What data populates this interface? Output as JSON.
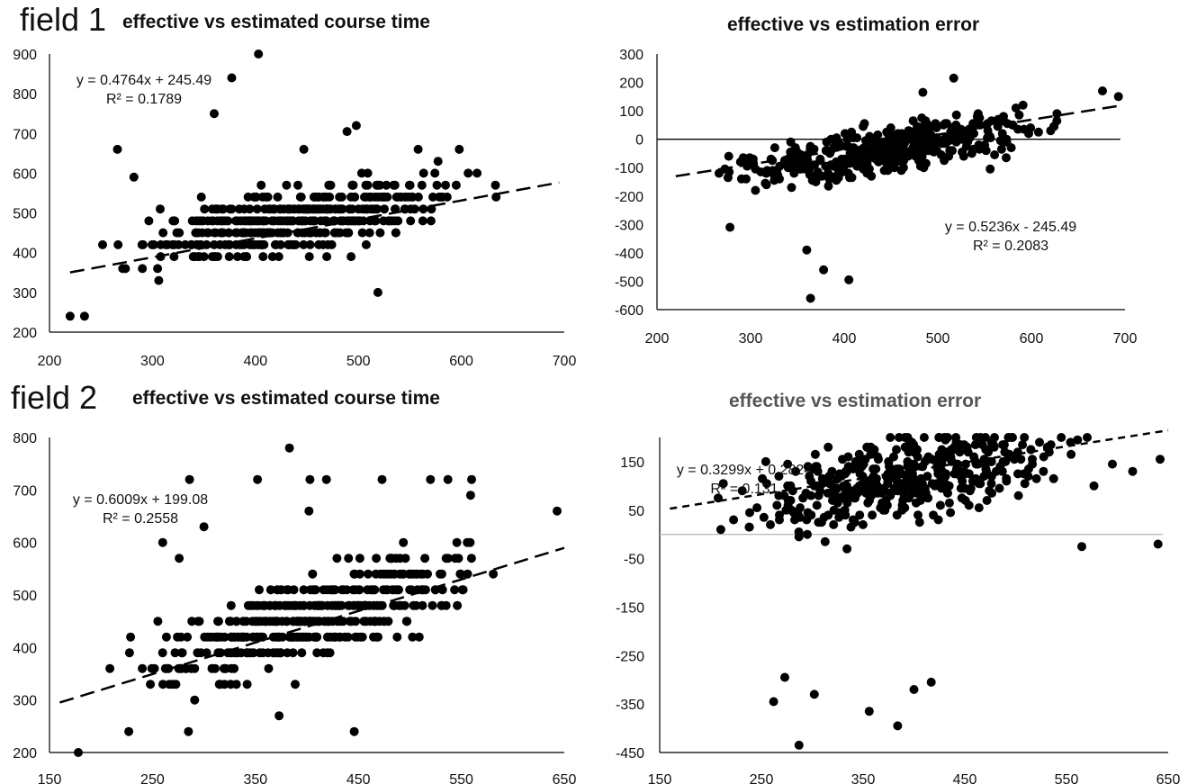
{
  "field_labels": [
    "field 1",
    "field 2"
  ],
  "colors": {
    "points": "#000000",
    "axes": "#000000",
    "zero_line_field2": "#bbbbbb",
    "title_field2_right": "#555555"
  },
  "chart_data": [
    {
      "id": "f1-time",
      "type": "scatter",
      "title": "effective vs estimated course time",
      "xlim": [
        200,
        700
      ],
      "ylim": [
        200,
        900
      ],
      "xticks": [
        200,
        300,
        400,
        500,
        600,
        700
      ],
      "yticks": [
        200,
        300,
        400,
        500,
        600,
        700,
        800,
        900
      ],
      "trendline": {
        "slope": 0.4764,
        "intercept": 245.49,
        "x_range": [
          220,
          695
        ]
      },
      "equation": "y = 0.4764x + 245.49",
      "r2": "R² = 0.1789",
      "zero_line": false,
      "n_points": 420,
      "noise": [
        -110,
        160
      ],
      "x_range": [
        218,
        693
      ],
      "outliers": [
        [
          403,
          900
        ],
        [
          377,
          840
        ],
        [
          360,
          750
        ],
        [
          498,
          720
        ],
        [
          489,
          705
        ],
        [
          266,
          660
        ],
        [
          447,
          660
        ],
        [
          558,
          660
        ],
        [
          598,
          660
        ],
        [
          282,
          590
        ],
        [
          519,
          300
        ],
        [
          234,
          240
        ],
        [
          220,
          240
        ]
      ]
    },
    {
      "id": "f1-error",
      "type": "scatter",
      "title": "effective vs estimation error",
      "xlim": [
        200,
        700
      ],
      "ylim": [
        -600,
        300
      ],
      "xticks": [
        200,
        300,
        400,
        500,
        600,
        700
      ],
      "yticks": [
        -600,
        -500,
        -400,
        -300,
        -200,
        -100,
        0,
        100,
        200,
        300
      ],
      "trendline": {
        "slope": 0.5236,
        "intercept": -245.49,
        "x_range": [
          220,
          695
        ]
      },
      "equation": "y = 0.5236x - 245.49",
      "r2": "R² = 0.2083",
      "zero_line": true,
      "zero_line_range": [
        200,
        695
      ],
      "n_points": 420,
      "noise": [
        -160,
        110
      ],
      "x_range": [
        218,
        693
      ],
      "outliers": [
        [
          378,
          -460
        ],
        [
          405,
          -495
        ],
        [
          364,
          -560
        ],
        [
          360,
          -390
        ],
        [
          278,
          -310
        ],
        [
          517,
          215
        ],
        [
          484,
          165
        ],
        [
          676,
          170
        ],
        [
          693,
          150
        ],
        [
          556,
          -105
        ]
      ]
    },
    {
      "id": "f2-time",
      "type": "scatter",
      "title": "effective vs estimated course time",
      "xlim": [
        150,
        650
      ],
      "ylim": [
        200,
        800
      ],
      "xticks": [
        150,
        250,
        350,
        450,
        550,
        650
      ],
      "yticks": [
        200,
        300,
        400,
        500,
        600,
        700,
        800
      ],
      "trendline": {
        "slope": 0.6009,
        "intercept": 199.08,
        "x_range": [
          160,
          650
        ]
      },
      "equation": "y = 0.6009x + 199.08",
      "r2": "R² = 0.2558",
      "zero_line": false,
      "n_points": 420,
      "noise": [
        -120,
        150
      ],
      "x_range": [
        175,
        642
      ],
      "outliers": [
        [
          383,
          780
        ],
        [
          286,
          720
        ],
        [
          352,
          720
        ],
        [
          403,
          720
        ],
        [
          419,
          720
        ],
        [
          473,
          720
        ],
        [
          520,
          720
        ],
        [
          537,
          720
        ],
        [
          560,
          720
        ],
        [
          559,
          690
        ],
        [
          643,
          660
        ],
        [
          402,
          660
        ],
        [
          300,
          630
        ],
        [
          260,
          600
        ],
        [
          276,
          570
        ],
        [
          178,
          200
        ],
        [
          373,
          270
        ],
        [
          446,
          240
        ],
        [
          285,
          240
        ],
        [
          227,
          240
        ]
      ]
    },
    {
      "id": "f2-error",
      "type": "scatter",
      "title": "effective vs estimation error",
      "xlim": [
        150,
        650
      ],
      "ylim": [
        -450,
        200
      ],
      "xticks": [
        150,
        250,
        350,
        450,
        550,
        650
      ],
      "yticks": [
        -450,
        -350,
        -250,
        -150,
        -50,
        50,
        150
      ],
      "trendline": {
        "slope": 0.3299,
        "intercept": 0.2824,
        "x_range": [
          160,
          650
        ]
      },
      "equation": "y = 0.3299x + 0.2824",
      "r2": "R² = 0.131",
      "zero_line": true,
      "zero_line_range": [
        150,
        645
      ],
      "n_points": 420,
      "noise": [
        -160,
        130
      ],
      "x_range": [
        160,
        645
      ],
      "outliers": [
        [
          287,
          -435
        ],
        [
          384,
          -395
        ],
        [
          356,
          -365
        ],
        [
          262,
          -345
        ],
        [
          302,
          -330
        ],
        [
          400,
          -320
        ],
        [
          417,
          -305
        ],
        [
          273,
          -295
        ],
        [
          554,
          190
        ],
        [
          615,
          130
        ],
        [
          642,
          155
        ],
        [
          577,
          100
        ],
        [
          533,
          170
        ],
        [
          473,
          170
        ],
        [
          640,
          -20
        ],
        [
          565,
          -25
        ]
      ]
    }
  ]
}
